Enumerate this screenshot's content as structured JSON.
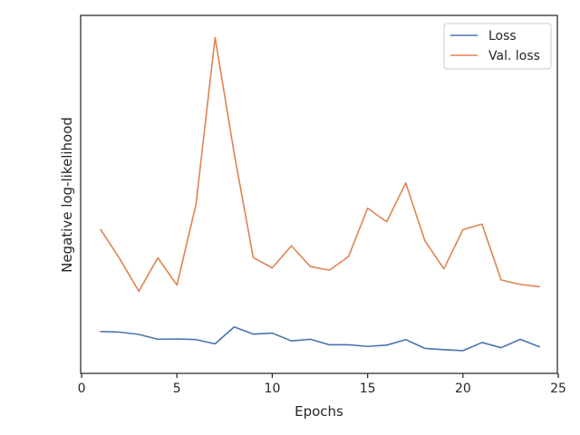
{
  "chart_data": {
    "type": "line",
    "title": "",
    "xlabel": "Epochs",
    "ylabel": "Negative log-likelihood",
    "xlim": [
      -0.05,
      24.95
    ],
    "ylim": [
      0,
      1
    ],
    "xticks": [
      0,
      5,
      10,
      15,
      20,
      25
    ],
    "yticks_labeled": false,
    "grid": false,
    "legend": "top-right",
    "x": [
      1,
      2,
      3,
      4,
      5,
      6,
      7,
      8,
      9,
      10,
      11,
      12,
      13,
      14,
      15,
      16,
      17,
      18,
      19,
      20,
      21,
      22,
      23,
      24
    ],
    "series": [
      {
        "name": "Loss",
        "color": "#4c72b0",
        "values": [
          0.09,
          0.088,
          0.081,
          0.066,
          0.067,
          0.065,
          0.052,
          0.104,
          0.082,
          0.085,
          0.061,
          0.066,
          0.049,
          0.049,
          0.044,
          0.048,
          0.065,
          0.038,
          0.034,
          0.031,
          0.056,
          0.04,
          0.066,
          0.043
        ]
      },
      {
        "name": "Val. loss",
        "color": "#dd8452",
        "values": [
          0.404,
          0.314,
          0.214,
          0.317,
          0.233,
          0.482,
          0.996,
          0.64,
          0.318,
          0.286,
          0.354,
          0.29,
          0.279,
          0.321,
          0.47,
          0.428,
          0.548,
          0.37,
          0.283,
          0.404,
          0.421,
          0.249,
          0.235,
          0.228
        ]
      }
    ]
  }
}
